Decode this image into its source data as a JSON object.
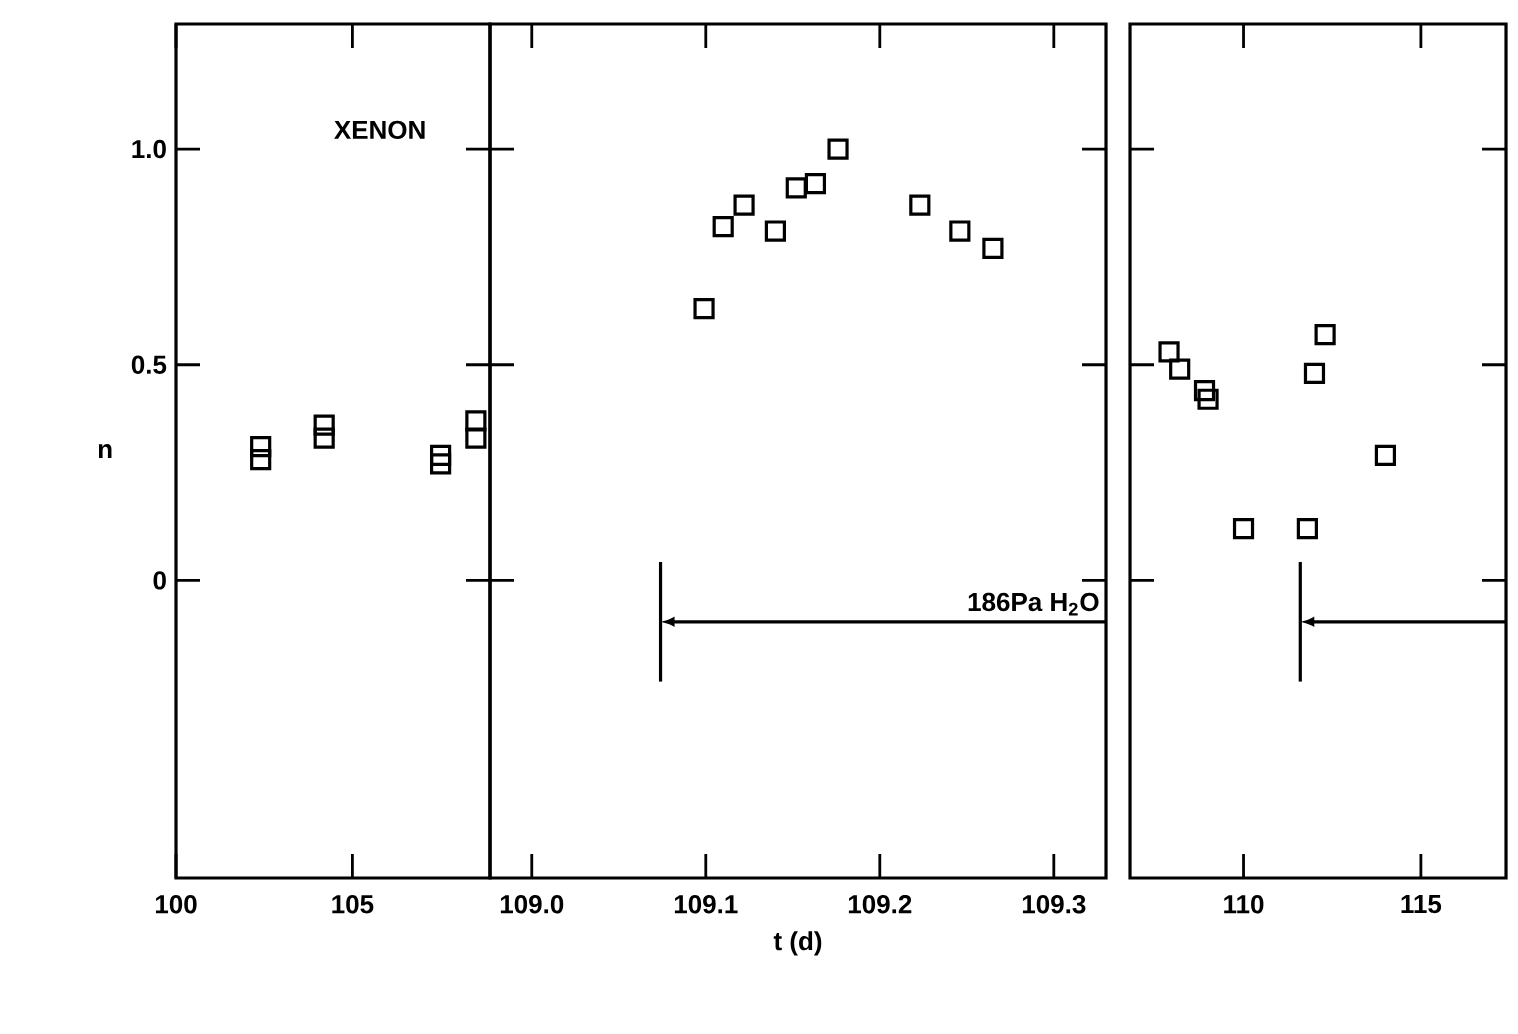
{
  "chart_data": [
    {
      "type": "scatter",
      "title": "XENON",
      "ylabel": "n",
      "marker": "square",
      "color": "#000000",
      "x": [
        102.4,
        102.4,
        104.2,
        104.2,
        107.5,
        107.5,
        108.5,
        108.5
      ],
      "values": [
        0.31,
        0.28,
        0.36,
        0.33,
        0.29,
        0.27,
        0.37,
        0.33
      ],
      "xlim": [
        100,
        108.9
      ],
      "xticks": [
        100,
        105
      ],
      "ylim": [
        -0.69,
        1.29
      ],
      "yticks": [
        0,
        0.5,
        {
          "value": 1,
          "label": "1.0"
        }
      ]
    },
    {
      "type": "scatter",
      "xlabel": "t (d)",
      "marker": "square",
      "color": "#000000",
      "tick_labels": "x",
      "x": [
        109.099,
        109.11,
        109.122,
        109.14,
        109.152,
        109.163,
        109.176,
        109.223,
        109.246,
        109.265
      ],
      "values": [
        0.63,
        0.82,
        0.87,
        0.81,
        0.91,
        0.92,
        1.0,
        0.87,
        0.81,
        0.77
      ],
      "xlim": [
        108.976,
        109.33
      ],
      "xticks": [
        {
          "value": 109,
          "label": "109.0"
        },
        109.1,
        109.2,
        109.3
      ],
      "ylim": [
        -0.69,
        1.29
      ],
      "yticks": [
        0,
        0.5,
        1
      ],
      "ref_lines": [
        {
          "axis": "x",
          "value": 109.074,
          "label": "186Pa H$_{2}$O",
          "color": "#000000"
        }
      ]
    },
    {
      "type": "scatter",
      "marker": "square",
      "color": "#000000",
      "tick_labels": "x",
      "x": [
        107.9,
        108.2,
        108.9,
        109.0,
        110.0,
        111.8,
        112.0,
        112.3,
        114.0
      ],
      "values": [
        0.53,
        0.49,
        0.44,
        0.42,
        0.12,
        0.12,
        0.48,
        0.57,
        0.29
      ],
      "xlim": [
        106.8,
        117.4
      ],
      "xticks": [
        110,
        115
      ],
      "ylim": [
        -0.69,
        1.29
      ],
      "yticks": [
        0,
        0.5,
        1
      ],
      "ref_lines": [
        {
          "axis": "x",
          "value": 111.6,
          "color": "#000000"
        }
      ]
    }
  ]
}
